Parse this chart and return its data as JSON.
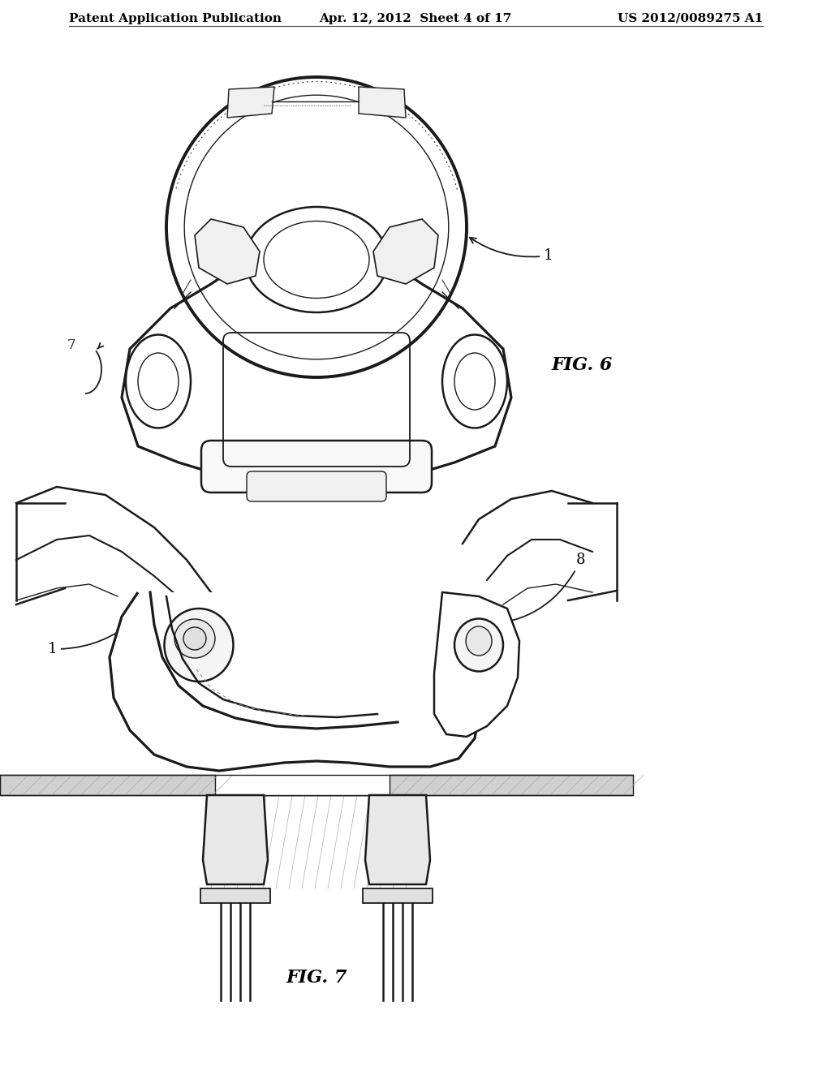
{
  "background_color": "#ffffff",
  "header_left": "Patent Application Publication",
  "header_center": "Apr. 12, 2012  Sheet 4 of 17",
  "header_right": "US 2012/0089275 A1",
  "fig6_label": "FIG. 6",
  "fig7_label": "FIG. 7",
  "line_color": "#1a1a1a",
  "gray_fill": "#cccccc",
  "light_gray": "#e8e8e8",
  "white_fill": "#ffffff"
}
